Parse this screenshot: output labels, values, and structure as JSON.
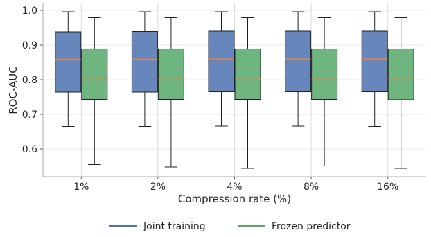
{
  "chart_data": {
    "type": "box",
    "title": "",
    "xlabel": "Compression rate (%)",
    "ylabel": "ROC-AUC",
    "categories": [
      "1%",
      "2%",
      "4%",
      "8%",
      "16%"
    ],
    "ylim": [
      0.52,
      1.02
    ],
    "yticks": [
      0.6,
      0.7,
      0.8,
      0.9,
      1.0
    ],
    "ytick_labels": [
      "0.6",
      "0.7",
      "0.8",
      "0.9",
      "1.0"
    ],
    "grid": true,
    "legend_position": "bottom-center",
    "series": [
      {
        "name": "Joint training",
        "color": "#4c72b0",
        "boxes": [
          {
            "whisker_low": 0.665,
            "q1": 0.764,
            "median": 0.859,
            "q3": 0.938,
            "whisker_high": 0.996
          },
          {
            "whisker_low": 0.665,
            "q1": 0.764,
            "median": 0.859,
            "q3": 0.939,
            "whisker_high": 0.996
          },
          {
            "whisker_low": 0.666,
            "q1": 0.765,
            "median": 0.86,
            "q3": 0.94,
            "whisker_high": 0.996
          },
          {
            "whisker_low": 0.666,
            "q1": 0.765,
            "median": 0.86,
            "q3": 0.94,
            "whisker_high": 0.996
          },
          {
            "whisker_low": 0.665,
            "q1": 0.765,
            "median": 0.86,
            "q3": 0.94,
            "whisker_high": 0.996
          }
        ]
      },
      {
        "name": "Frozen predictor",
        "color": "#55a868",
        "boxes": [
          {
            "whisker_low": 0.555,
            "q1": 0.743,
            "median": 0.8,
            "q3": 0.889,
            "whisker_high": 0.979
          },
          {
            "whisker_low": 0.548,
            "q1": 0.743,
            "median": 0.8,
            "q3": 0.889,
            "whisker_high": 0.979
          },
          {
            "whisker_low": 0.544,
            "q1": 0.743,
            "median": 0.8,
            "q3": 0.889,
            "whisker_high": 0.979
          },
          {
            "whisker_low": 0.551,
            "q1": 0.743,
            "median": 0.8,
            "q3": 0.889,
            "whisker_high": 0.979
          },
          {
            "whisker_low": 0.544,
            "q1": 0.742,
            "median": 0.8,
            "q3": 0.889,
            "whisker_high": 0.979
          }
        ]
      }
    ],
    "median_color": "#dd8452"
  }
}
